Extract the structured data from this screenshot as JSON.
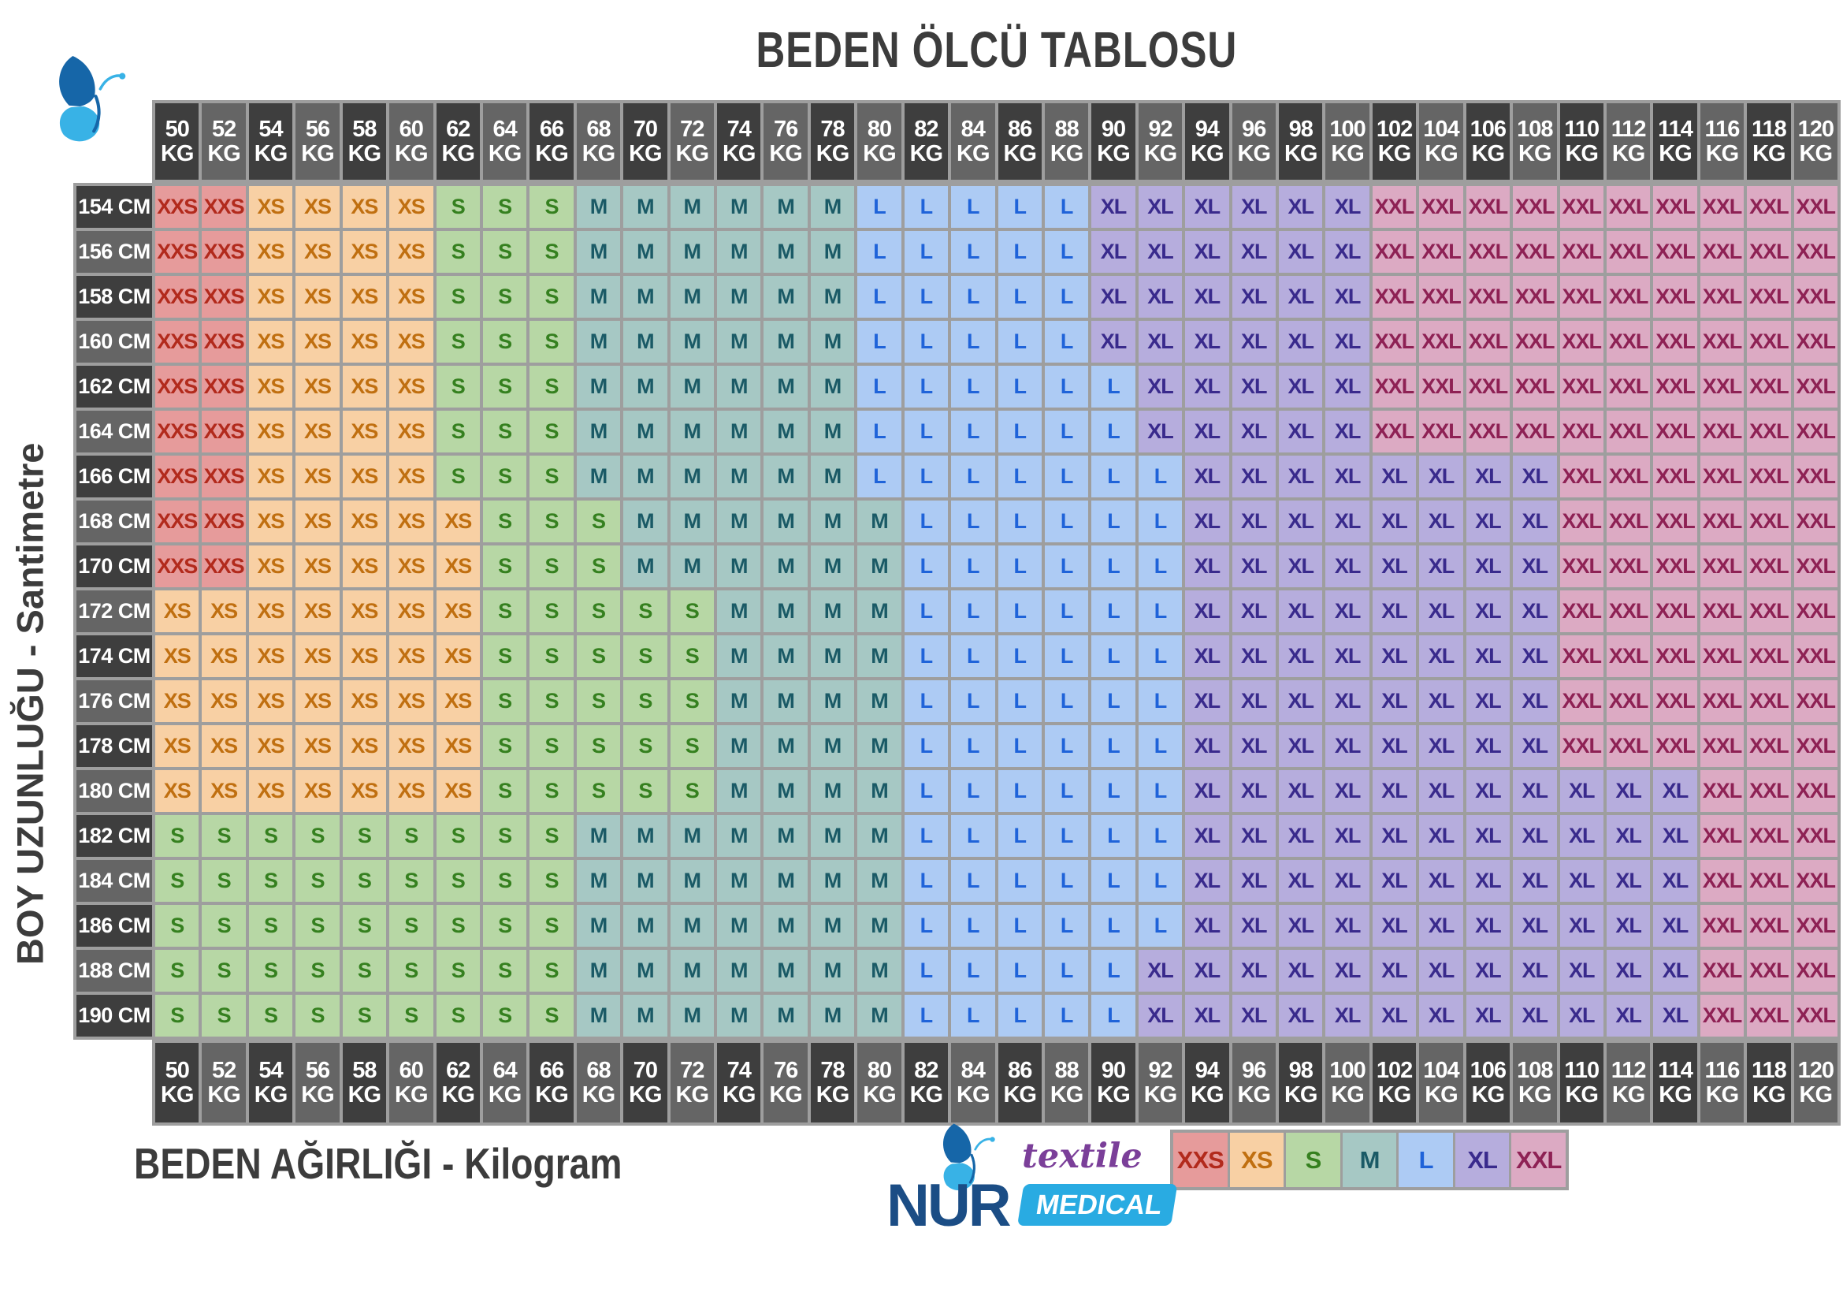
{
  "title": "BEDEN ÖLCÜ TABLOSU",
  "x_axis_label": "BEDEN AĞIRLIĞI - Kilogram",
  "y_axis_label": "BOY UZUNLUĞU - Santimetre",
  "units": {
    "weight": "KG",
    "height": "CM"
  },
  "logo": {
    "name": "NUR",
    "line1": "textile",
    "line2": "MEDICAL"
  },
  "colors": {
    "frame": "#9e9e9e",
    "header_dark": "#3e3e3e",
    "header_medium": "#656565",
    "header_text": "#ffffff",
    "title_text": "#3c3c3c",
    "logo_navy": "#1b4d85",
    "logo_light_blue": "#29abe2",
    "logo_purple": "#7b3f99",
    "wing_dark": "#1666a8",
    "wing_light": "#38b2e6",
    "sizes": {
      "XXS": {
        "bg": "#e69b9b",
        "fg": "#b22a1c"
      },
      "XS": {
        "bg": "#f8d0a4",
        "fg": "#c06f10"
      },
      "S": {
        "bg": "#b7d7a5",
        "fg": "#35801f"
      },
      "M": {
        "bg": "#a6c8c4",
        "fg": "#1a5a66"
      },
      "L": {
        "bg": "#adcbf4",
        "fg": "#1f63d9"
      },
      "XL": {
        "bg": "#b6addd",
        "fg": "#392a8c"
      },
      "XXL": {
        "bg": "#dcaac3",
        "fg": "#8e2154"
      }
    }
  },
  "chart_data": {
    "type": "heatmap",
    "title": "BEDEN ÖLCÜ TABLOSU",
    "xlabel": "BEDEN AĞIRLIĞI - Kilogram",
    "ylabel": "BOY UZUNLUĞU - Santimetre",
    "x_values": [
      50,
      52,
      54,
      56,
      58,
      60,
      62,
      64,
      66,
      68,
      70,
      72,
      74,
      76,
      78,
      80,
      82,
      84,
      86,
      88,
      90,
      92,
      94,
      96,
      98,
      100,
      102,
      104,
      106,
      108,
      110,
      112,
      114,
      116,
      118,
      120
    ],
    "y_values": [
      154,
      156,
      158,
      160,
      162,
      164,
      166,
      168,
      170,
      172,
      174,
      176,
      178,
      180,
      182,
      184,
      186,
      188,
      190
    ],
    "legend": [
      "XXS",
      "XS",
      "S",
      "M",
      "L",
      "XL",
      "XXL"
    ],
    "rows_runs": [
      {
        "height": 154,
        "runs": [
          [
            "XXS",
            2
          ],
          [
            "XS",
            4
          ],
          [
            "S",
            3
          ],
          [
            "M",
            6
          ],
          [
            "L",
            5
          ],
          [
            "XL",
            6
          ],
          [
            "XXL",
            10
          ]
        ]
      },
      {
        "height": 156,
        "runs": [
          [
            "XXS",
            2
          ],
          [
            "XS",
            4
          ],
          [
            "S",
            3
          ],
          [
            "M",
            6
          ],
          [
            "L",
            5
          ],
          [
            "XL",
            6
          ],
          [
            "XXL",
            10
          ]
        ]
      },
      {
        "height": 158,
        "runs": [
          [
            "XXS",
            2
          ],
          [
            "XS",
            4
          ],
          [
            "S",
            3
          ],
          [
            "M",
            6
          ],
          [
            "L",
            5
          ],
          [
            "XL",
            6
          ],
          [
            "XXL",
            10
          ]
        ]
      },
      {
        "height": 160,
        "runs": [
          [
            "XXS",
            2
          ],
          [
            "XS",
            4
          ],
          [
            "S",
            3
          ],
          [
            "M",
            6
          ],
          [
            "L",
            5
          ],
          [
            "XL",
            6
          ],
          [
            "XXL",
            10
          ]
        ]
      },
      {
        "height": 162,
        "runs": [
          [
            "XXS",
            2
          ],
          [
            "XS",
            4
          ],
          [
            "S",
            3
          ],
          [
            "M",
            6
          ],
          [
            "L",
            6
          ],
          [
            "XL",
            5
          ],
          [
            "XXL",
            10
          ]
        ]
      },
      {
        "height": 164,
        "runs": [
          [
            "XXS",
            2
          ],
          [
            "XS",
            4
          ],
          [
            "S",
            3
          ],
          [
            "M",
            6
          ],
          [
            "L",
            6
          ],
          [
            "XL",
            5
          ],
          [
            "XXL",
            10
          ]
        ]
      },
      {
        "height": 166,
        "runs": [
          [
            "XXS",
            2
          ],
          [
            "XS",
            4
          ],
          [
            "S",
            3
          ],
          [
            "M",
            6
          ],
          [
            "L",
            7
          ],
          [
            "XL",
            8
          ],
          [
            "XXL",
            6
          ]
        ]
      },
      {
        "height": 168,
        "runs": [
          [
            "XXS",
            2
          ],
          [
            "XS",
            5
          ],
          [
            "S",
            3
          ],
          [
            "M",
            6
          ],
          [
            "L",
            6
          ],
          [
            "XL",
            8
          ],
          [
            "XXL",
            6
          ]
        ]
      },
      {
        "height": 170,
        "runs": [
          [
            "XXS",
            2
          ],
          [
            "XS",
            5
          ],
          [
            "S",
            3
          ],
          [
            "M",
            6
          ],
          [
            "L",
            6
          ],
          [
            "XL",
            8
          ],
          [
            "XXL",
            6
          ]
        ]
      },
      {
        "height": 172,
        "runs": [
          [
            "XS",
            7
          ],
          [
            "S",
            5
          ],
          [
            "M",
            4
          ],
          [
            "L",
            6
          ],
          [
            "XL",
            8
          ],
          [
            "XXL",
            6
          ]
        ]
      },
      {
        "height": 174,
        "runs": [
          [
            "XS",
            7
          ],
          [
            "S",
            5
          ],
          [
            "M",
            4
          ],
          [
            "L",
            6
          ],
          [
            "XL",
            8
          ],
          [
            "XXL",
            6
          ]
        ]
      },
      {
        "height": 176,
        "runs": [
          [
            "XS",
            7
          ],
          [
            "S",
            5
          ],
          [
            "M",
            4
          ],
          [
            "L",
            6
          ],
          [
            "XL",
            8
          ],
          [
            "XXL",
            6
          ]
        ]
      },
      {
        "height": 178,
        "runs": [
          [
            "XS",
            7
          ],
          [
            "S",
            5
          ],
          [
            "M",
            4
          ],
          [
            "L",
            6
          ],
          [
            "XL",
            8
          ],
          [
            "XXL",
            6
          ]
        ]
      },
      {
        "height": 180,
        "runs": [
          [
            "XS",
            7
          ],
          [
            "S",
            5
          ],
          [
            "M",
            4
          ],
          [
            "L",
            6
          ],
          [
            "XL",
            11
          ],
          [
            "XXL",
            3
          ]
        ]
      },
      {
        "height": 182,
        "runs": [
          [
            "S",
            9
          ],
          [
            "M",
            7
          ],
          [
            "L",
            6
          ],
          [
            "XL",
            11
          ],
          [
            "XXL",
            3
          ]
        ]
      },
      {
        "height": 184,
        "runs": [
          [
            "S",
            9
          ],
          [
            "M",
            7
          ],
          [
            "L",
            6
          ],
          [
            "XL",
            11
          ],
          [
            "XXL",
            3
          ]
        ]
      },
      {
        "height": 186,
        "runs": [
          [
            "S",
            9
          ],
          [
            "M",
            7
          ],
          [
            "L",
            6
          ],
          [
            "XL",
            11
          ],
          [
            "XXL",
            3
          ]
        ]
      },
      {
        "height": 188,
        "runs": [
          [
            "S",
            9
          ],
          [
            "M",
            7
          ],
          [
            "L",
            5
          ],
          [
            "XL",
            12
          ],
          [
            "XXL",
            3
          ]
        ]
      },
      {
        "height": 190,
        "runs": [
          [
            "S",
            9
          ],
          [
            "M",
            7
          ],
          [
            "L",
            5
          ],
          [
            "XL",
            12
          ],
          [
            "XXL",
            3
          ]
        ]
      }
    ]
  }
}
